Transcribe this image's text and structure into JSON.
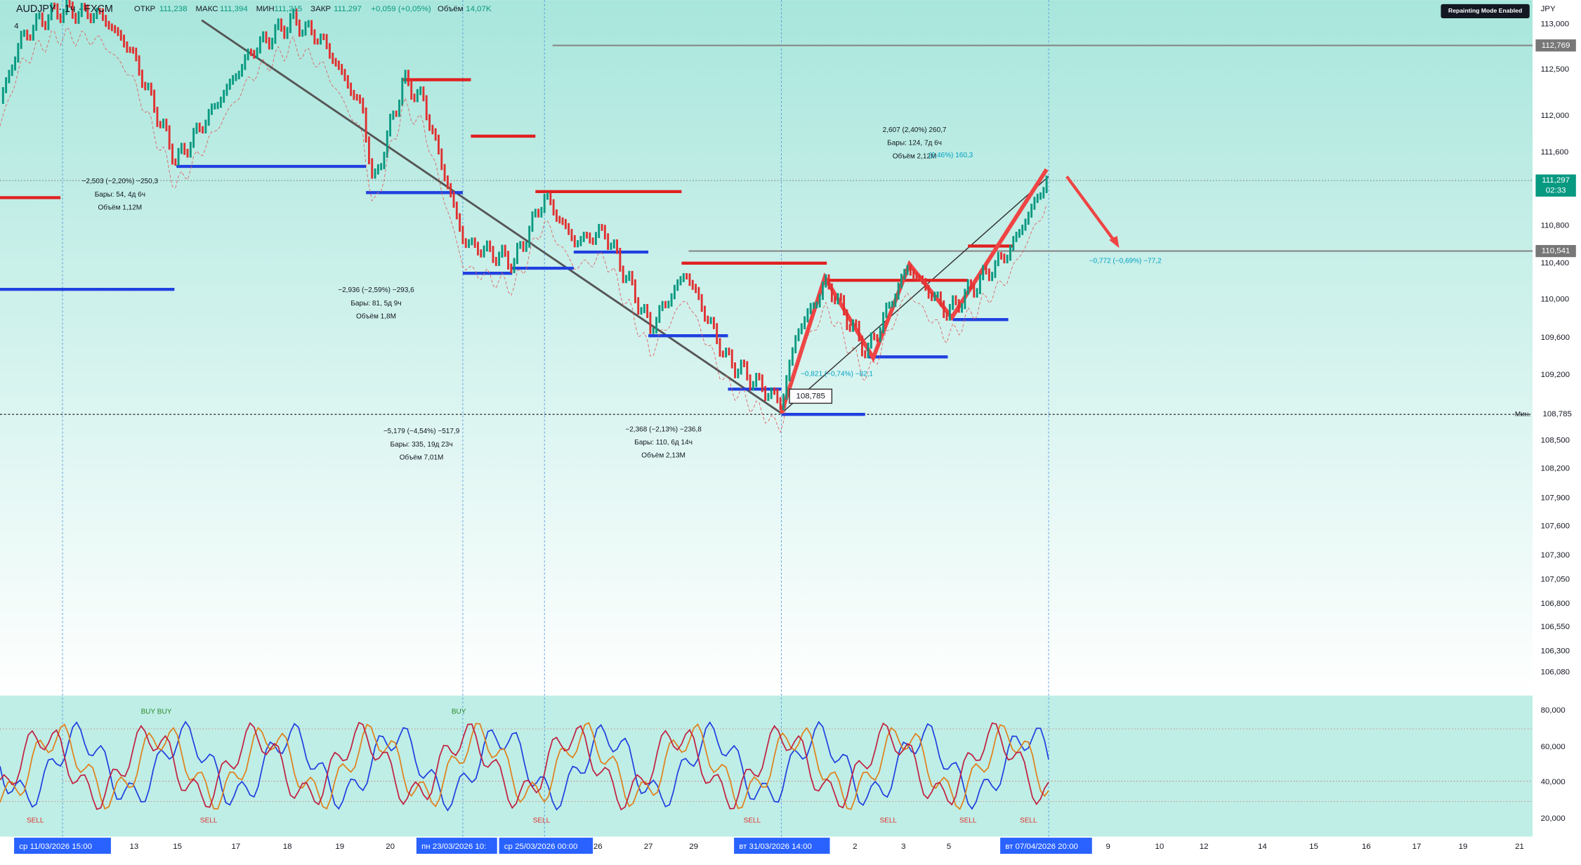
{
  "header": {
    "symbol": "AUDJPY · 1ч · FXCM",
    "open_label": "ОТКР",
    "open": "111,238",
    "high_label": "МАКС",
    "high": "111,394",
    "low_label": "МИН",
    "low": "111,215",
    "close_label": "ЗАКР",
    "close": "111,297",
    "change": "+0,059 (+0,05%)",
    "volume_label": "Объём",
    "volume": "14,07K",
    "indicator_count": "4"
  },
  "toolbar": {
    "repaint": "Repainting Mode Enabled",
    "currency": "JPY"
  },
  "price_axis": [
    "113,000",
    "112,500",
    "112,000",
    "111,600",
    "110,800",
    "110,400",
    "110,000",
    "109,600",
    "109,200",
    "108,500",
    "108,200",
    "107,900",
    "107,600",
    "107,300",
    "107,050",
    "106,800",
    "106,550",
    "106,300",
    "106,080"
  ],
  "price_tags": {
    "level_high": "112,769",
    "last": "111,297",
    "countdown": "02:33",
    "level_mid": "110,541",
    "min_label": "Мин.",
    "min": "108,785"
  },
  "time_axis": [
    "13",
    "15",
    "17",
    "18",
    "19",
    "20",
    "26",
    "27",
    "29",
    "2",
    "3",
    "5",
    "9",
    "10",
    "12",
    "14",
    "15",
    "16",
    "17",
    "19",
    "21"
  ],
  "time_highlights": [
    "ср 11/03/2026   15:00",
    "пн 23/03/2026   10:",
    "ср 25/03/2026   00:00",
    "вт 31/03/2026   14:00",
    "вт 07/04/2026   20:00"
  ],
  "measurements": [
    [
      "−2,503 (−2,20%) −250,3",
      "Бары: 54, 4д 6ч",
      "Объём 1,12M"
    ],
    [
      "−2,936 (−2,59%) −293,6",
      "Бары: 81, 5д 9ч",
      "Объём 1,8M"
    ],
    [
      "−5,179 (−4,54%) −517,9",
      "Бары: 335, 19д 23ч",
      "Объём 7,01M"
    ],
    [
      "−2,368 (−2,13%) −236,8",
      "Бары: 110, 6д 14ч",
      "Объём 2,13M"
    ],
    [
      "2,607 (2,40%) 260,7",
      "Бары: 124, 7д 6ч",
      "Объём 2,12M"
    ]
  ],
  "annotations": [
    "(2,46%) 160,3",
    "−0,821 (−0,74%) −82,1",
    "−0,772 (−0,69%) −77,2"
  ],
  "oscillator_axis": [
    "80,000",
    "60,000",
    "40,000",
    "20,000"
  ],
  "signals": [
    "BUY BUY",
    "BUY",
    "SELL",
    "SELL",
    "SELL",
    "SELL",
    "SELL",
    "SELL",
    "SELL"
  ]
}
